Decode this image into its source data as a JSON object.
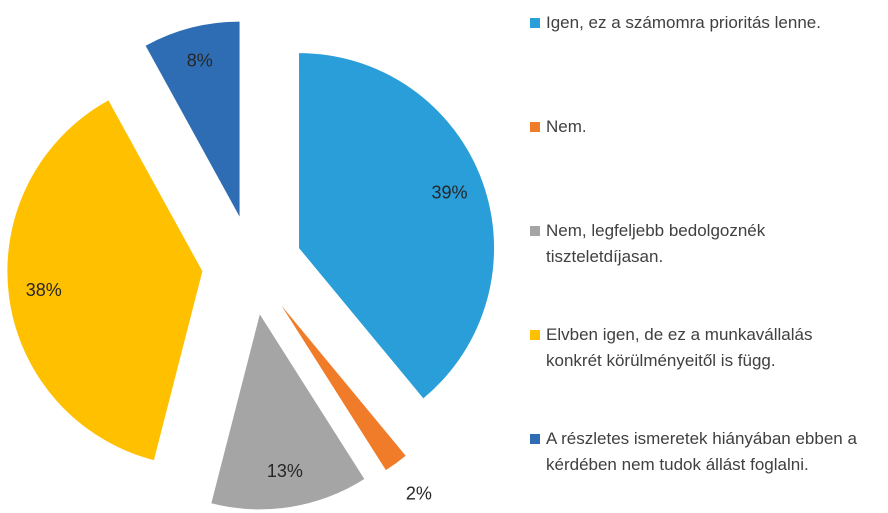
{
  "chart_data": {
    "type": "pie",
    "categories": [
      "Igen, ez a számomra prioritás lenne.",
      "Nem.",
      "Nem, legfeljebb bedolgoznék tiszteletdíjasan.",
      "Elvben igen, de ez a munkavállalás konkrét körülményeitől is függ.",
      "A részletes ismeretek hiányában ebben a kérdében nem tudok állást foglalni."
    ],
    "values": [
      39,
      2,
      13,
      38,
      8
    ],
    "value_labels": [
      "39%",
      "2%",
      "13%",
      "38%",
      "8%"
    ],
    "colors": [
      "#2a9ed9",
      "#f07c2a",
      "#a5a5a5",
      "#ffc000",
      "#2e6db4"
    ],
    "legend": "right"
  }
}
